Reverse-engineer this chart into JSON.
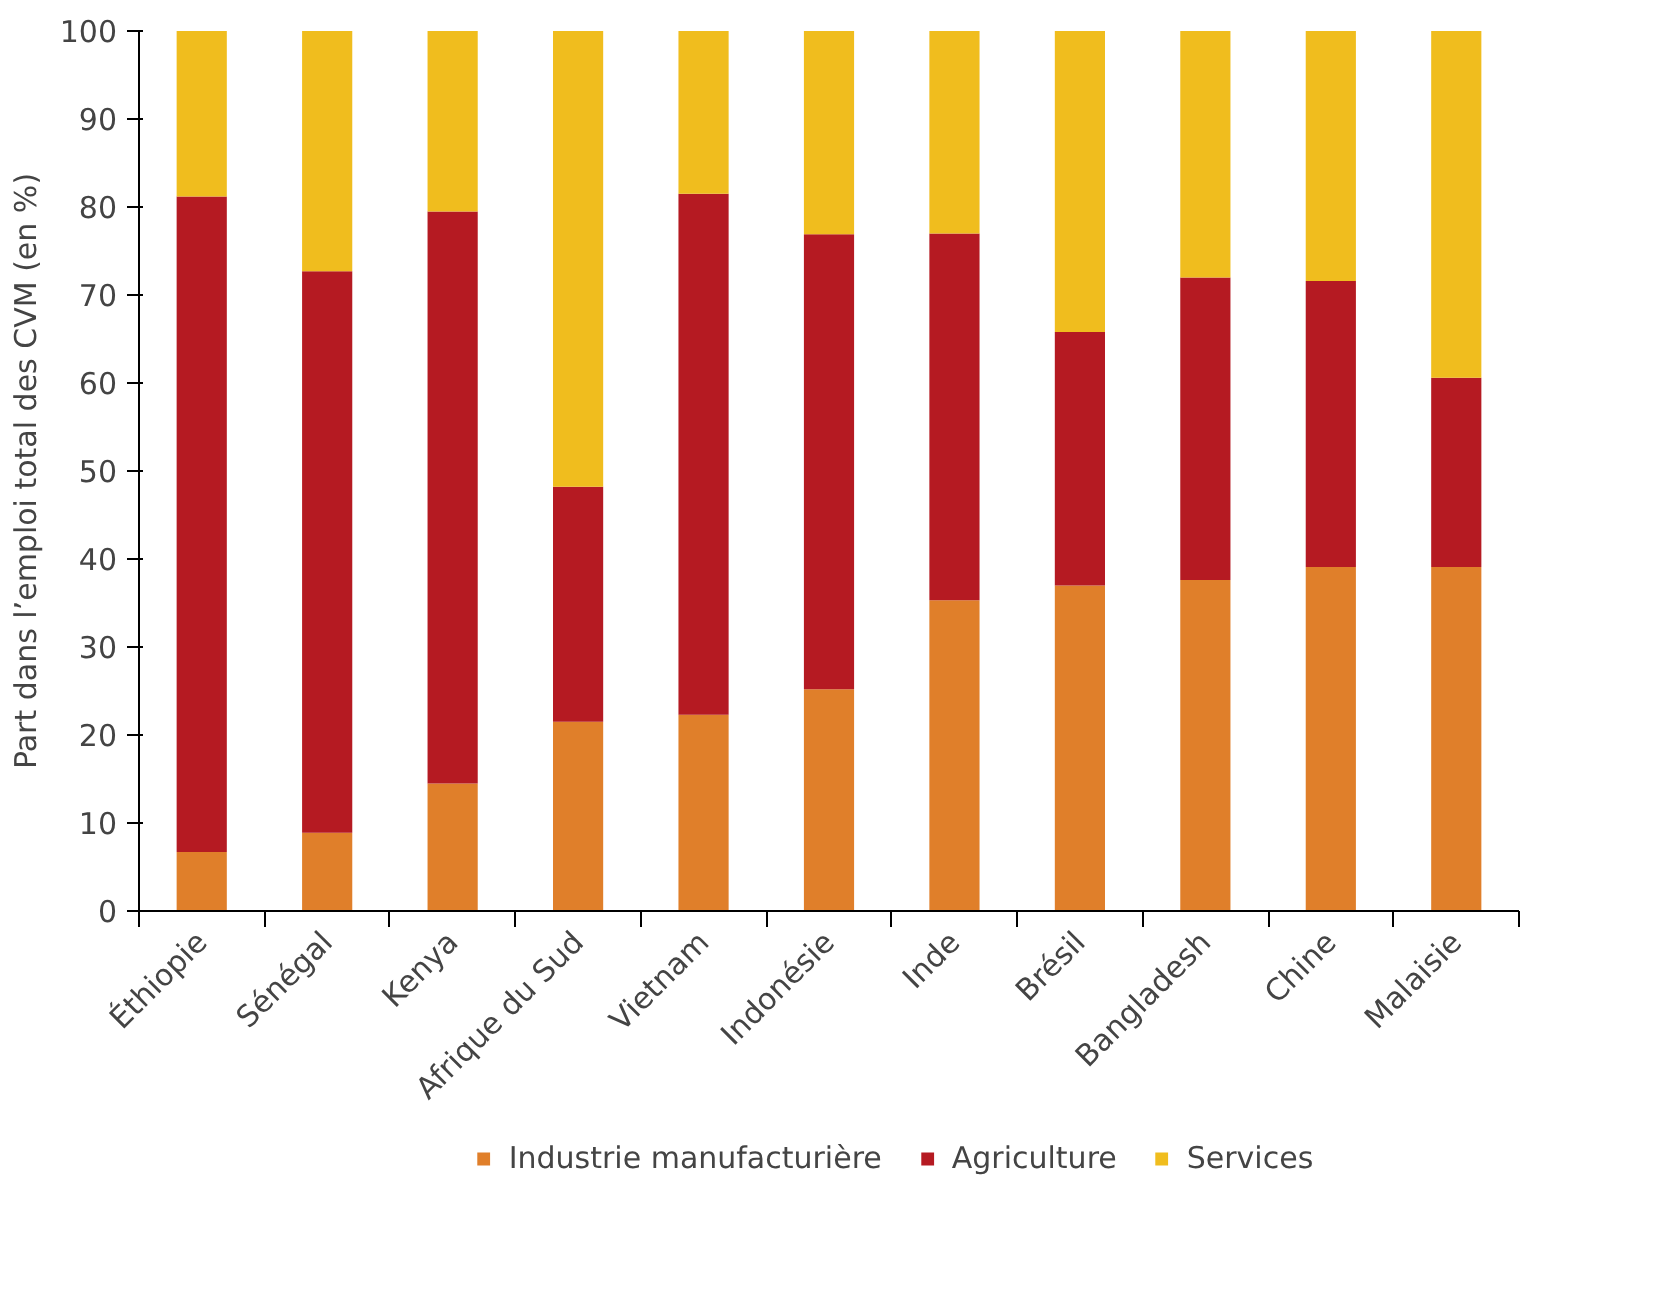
{
  "chart_data": {
    "type": "bar",
    "stacked": true,
    "ylabel": "Part dans l’emploi total des CVM (en %)",
    "categories": [
      "Éthiopie",
      "Sénégal",
      "Kenya",
      "Afrique du Sud",
      "Vietnam",
      "Indonésie",
      "Inde",
      "Brésil",
      "Bangladesh",
      "Chine",
      "Malaisie"
    ],
    "series": [
      {
        "name": "Industrie manufacturière",
        "color": "#e07f2a",
        "values": [
          6.7,
          8.9,
          14.5,
          21.5,
          22.3,
          25.2,
          35.3,
          37.0,
          37.6,
          39.1,
          39.1
        ]
      },
      {
        "name": "Agriculture",
        "color": "#b51a22",
        "values": [
          74.5,
          63.8,
          65.0,
          26.7,
          59.2,
          51.7,
          41.7,
          28.8,
          34.4,
          32.5,
          21.5
        ]
      },
      {
        "name": "Services",
        "color": "#f0bd1e",
        "values": [
          18.8,
          27.3,
          20.5,
          51.8,
          18.5,
          23.1,
          23.0,
          34.2,
          28.0,
          28.4,
          39.4
        ]
      }
    ],
    "ylim": [
      0,
      100
    ],
    "yticks": [
      0,
      10,
      20,
      30,
      40,
      50,
      60,
      70,
      80,
      90,
      100
    ],
    "grid": false,
    "legend": "bottom"
  }
}
